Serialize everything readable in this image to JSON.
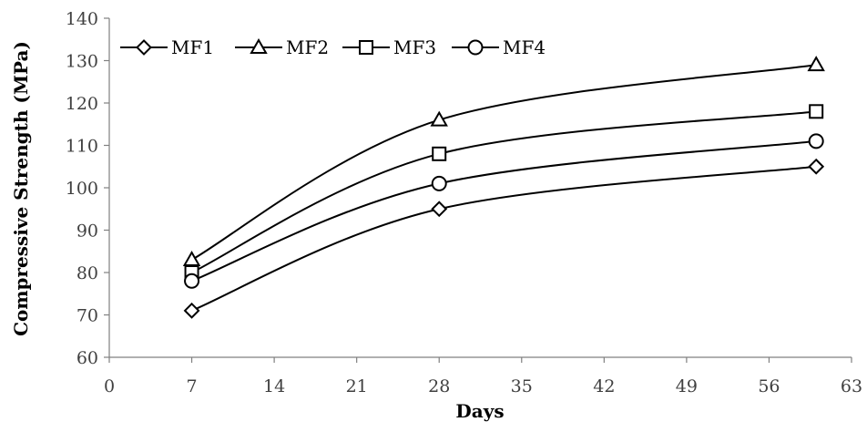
{
  "chart_data": {
    "type": "line",
    "title": "",
    "xlabel": "Days",
    "ylabel": "Compressive Strength (MPa)",
    "xlim": [
      0,
      63
    ],
    "ylim": [
      60,
      140
    ],
    "xticks": [
      0,
      7,
      14,
      21,
      28,
      35,
      42,
      49,
      56,
      63
    ],
    "yticks": [
      60,
      70,
      80,
      90,
      100,
      110,
      120,
      130,
      140
    ],
    "grid": false,
    "smooth": true,
    "legend_position": "top-left",
    "x": [
      7,
      28,
      60
    ],
    "series": [
      {
        "name": "MF1",
        "marker": "diamond",
        "values": [
          71,
          95,
          105
        ]
      },
      {
        "name": "MF2",
        "marker": "triangle",
        "values": [
          83,
          116,
          129
        ]
      },
      {
        "name": "MF3",
        "marker": "square",
        "values": [
          80,
          108,
          118
        ]
      },
      {
        "name": "MF4",
        "marker": "circle",
        "values": [
          78,
          101,
          111
        ]
      }
    ],
    "colors": {
      "line": "#000000",
      "axis": "#808080",
      "tick_text": "#404040",
      "background": "#ffffff"
    }
  }
}
